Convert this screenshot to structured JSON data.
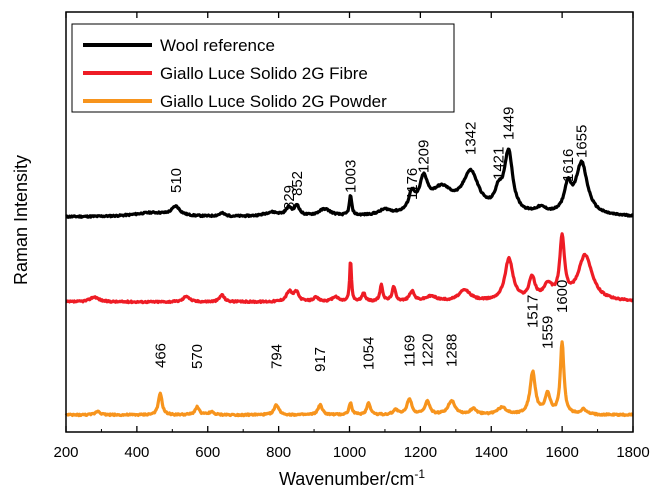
{
  "chart_data": {
    "type": "line",
    "title": "",
    "xlabel": "Wavenumber/cm",
    "xlabel_sup": "-1",
    "ylabel": "Raman Intensity",
    "xlim": [
      200,
      1800
    ],
    "x_ticks": [
      200,
      400,
      600,
      800,
      1000,
      1200,
      1400,
      1600,
      1800
    ],
    "y_ticks_labeled": false,
    "grid": false,
    "legend_position": "top-left",
    "series": [
      {
        "name": "Wool reference",
        "color": "#000000",
        "peaks": [
          {
            "x": 510,
            "label": "510"
          },
          {
            "x": 829,
            "label": "829"
          },
          {
            "x": 852,
            "label": "852"
          },
          {
            "x": 1003,
            "label": "1003"
          },
          {
            "x": 1176,
            "label": "1176"
          },
          {
            "x": 1209,
            "label": "1209"
          },
          {
            "x": 1342,
            "label": "1342"
          },
          {
            "x": 1421,
            "label": "1421"
          },
          {
            "x": 1449,
            "label": "1449"
          },
          {
            "x": 1616,
            "label": "1616"
          },
          {
            "x": 1655,
            "label": "1655"
          }
        ]
      },
      {
        "name": "Giallo Luce Solido 2G Fibre",
        "color": "#ee1c25",
        "peaks": []
      },
      {
        "name": "Giallo Luce Solido 2G Powder",
        "color": "#f7941d",
        "peaks": [
          {
            "x": 466,
            "label": "466"
          },
          {
            "x": 570,
            "label": "570"
          },
          {
            "x": 794,
            "label": "794"
          },
          {
            "x": 917,
            "label": "917"
          },
          {
            "x": 1054,
            "label": "1054"
          },
          {
            "x": 1169,
            "label": "1169"
          },
          {
            "x": 1220,
            "label": "1220"
          },
          {
            "x": 1288,
            "label": "1288"
          },
          {
            "x": 1517,
            "label": "1517"
          },
          {
            "x": 1559,
            "label": "1559"
          },
          {
            "x": 1600,
            "label": "1600"
          }
        ]
      }
    ]
  }
}
